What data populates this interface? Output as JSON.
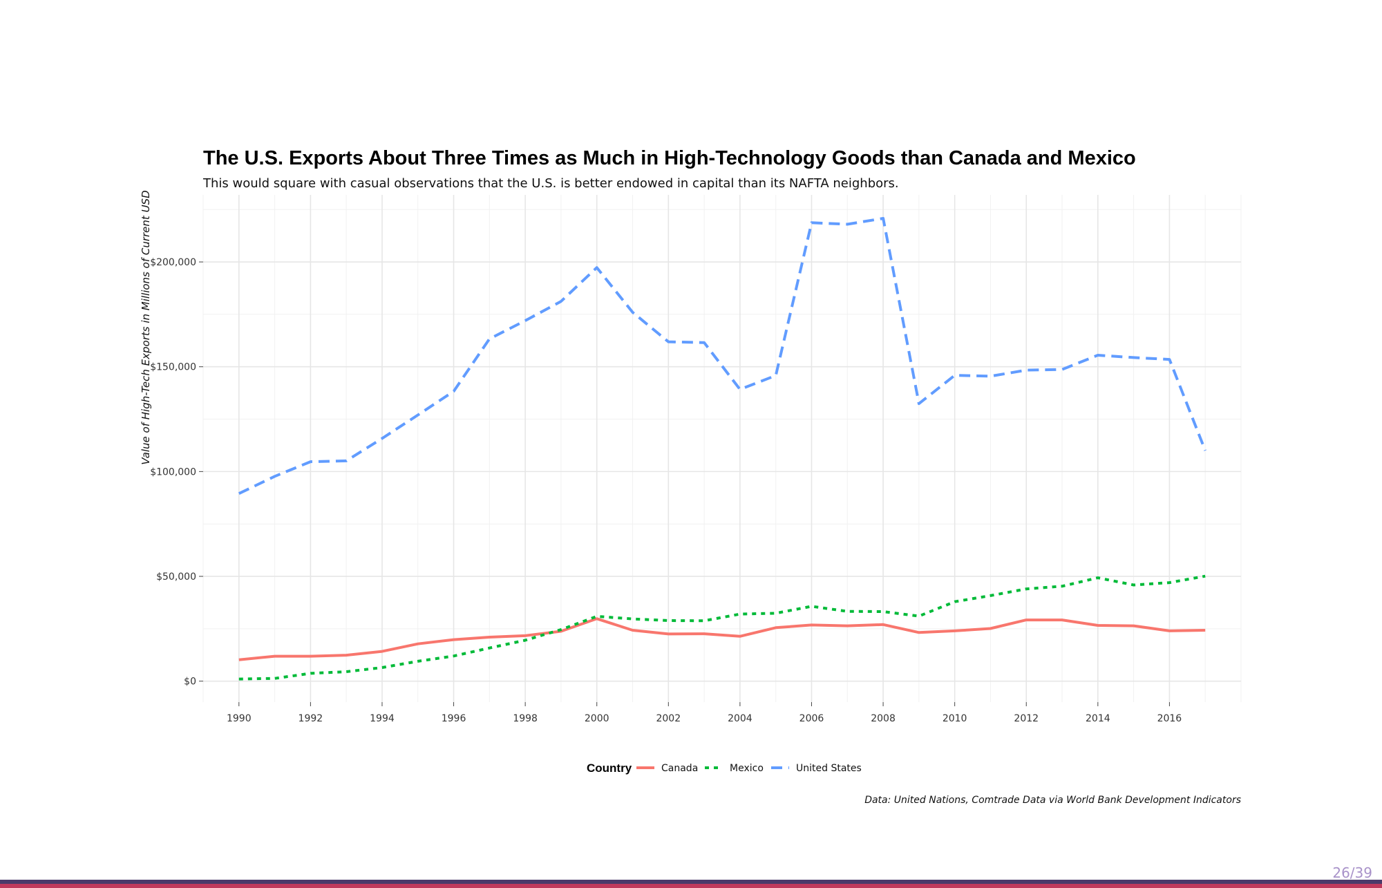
{
  "chart_data": {
    "type": "line",
    "title": "The U.S. Exports About Three Times as Much in High-Technology Goods than Canada and Mexico",
    "subtitle": "This would square with casual observations that the U.S. is better endowed in capital than its NAFTA neighbors.",
    "xlabel": "",
    "ylabel": "Value of High-Tech Exports in Millions of Current USD",
    "x": [
      1990,
      1991,
      1992,
      1993,
      1994,
      1995,
      1996,
      1997,
      1998,
      1999,
      2000,
      2001,
      2002,
      2003,
      2004,
      2005,
      2006,
      2007,
      2008,
      2009,
      2010,
      2011,
      2012,
      2013,
      2014,
      2015,
      2016,
      2017
    ],
    "xlim": [
      1989,
      2018
    ],
    "ylim": [
      -10000,
      232000
    ],
    "x_ticks": [
      1990,
      1992,
      1994,
      1996,
      1998,
      2000,
      2002,
      2004,
      2006,
      2008,
      2010,
      2012,
      2014,
      2016
    ],
    "x_tick_labels": [
      "1990",
      "1992",
      "1994",
      "1996",
      "1998",
      "2000",
      "2002",
      "2004",
      "2006",
      "2008",
      "2010",
      "2012",
      "2014",
      "2016"
    ],
    "y_ticks": [
      0,
      50000,
      100000,
      150000,
      200000
    ],
    "y_tick_labels": [
      "$0",
      "$50,000",
      "$100,000",
      "$150,000",
      "$200,000"
    ],
    "grid": true,
    "legend": {
      "title": "Country",
      "position": "bottom"
    },
    "series": [
      {
        "name": "Canada",
        "color": "#F8766D",
        "dash": "solid",
        "values": [
          10200,
          11900,
          11900,
          12400,
          14200,
          17800,
          19800,
          21000,
          21700,
          23800,
          29800,
          24300,
          22500,
          22600,
          21400,
          25500,
          26800,
          26400,
          27000,
          23200,
          24000,
          25100,
          29200,
          29200,
          26600,
          26400,
          24000,
          24300
        ]
      },
      {
        "name": "Mexico",
        "color": "#00BA38",
        "dash": "short",
        "values": [
          1000,
          1300,
          3700,
          4500,
          6500,
          9500,
          12000,
          15800,
          19500,
          24600,
          30900,
          29700,
          28900,
          28800,
          32000,
          32400,
          35700,
          33300,
          33200,
          31000,
          37900,
          40800,
          44000,
          45300,
          49300,
          45900,
          47000,
          50100
        ]
      },
      {
        "name": "United States",
        "color": "#619CFF",
        "dash": "long",
        "values": [
          89500,
          97700,
          104700,
          105100,
          115800,
          127000,
          138300,
          163300,
          172000,
          181200,
          197300,
          176000,
          161900,
          161500,
          139200,
          145800,
          218700,
          218000,
          220800,
          132400,
          145900,
          145500,
          148400,
          148700,
          155500,
          154400,
          153500,
          110000
        ]
      }
    ],
    "caption": "Data: United Nations, Comtrade Data via World Bank Development Indicators"
  },
  "slide": {
    "number": "26/39",
    "bar_top_color": "#4a3a6a",
    "bar_bottom_color": "#c0395c"
  }
}
